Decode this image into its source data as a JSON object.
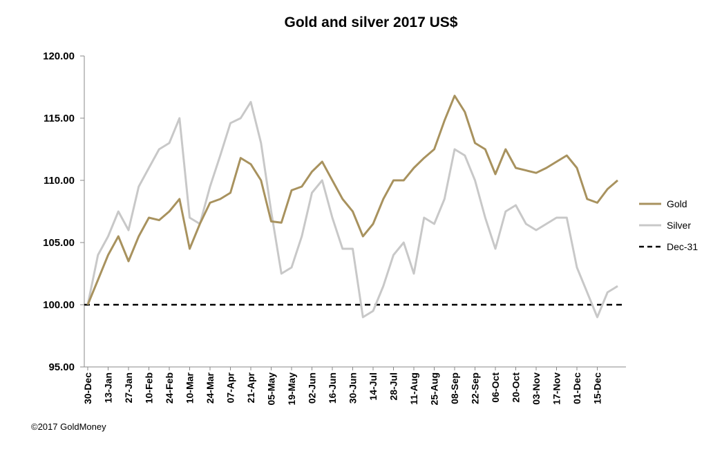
{
  "chart_data": {
    "type": "line",
    "title": "Gold and silver 2017  US$",
    "categories": [
      "30-Dec",
      null,
      "13-Jan",
      null,
      "27-Jan",
      null,
      "10-Feb",
      null,
      "24-Feb",
      null,
      "10-Mar",
      null,
      "24-Mar",
      null,
      "07-Apr",
      null,
      "21-Apr",
      null,
      "05-May",
      null,
      "19-May",
      null,
      "02-Jun",
      null,
      "16-Jun",
      null,
      "30-Jun",
      null,
      "14-Jul",
      null,
      "28-Jul",
      null,
      "11-Aug",
      null,
      "25-Aug",
      null,
      "08-Sep",
      null,
      "22-Sep",
      null,
      "06-Oct",
      null,
      "20-Oct",
      null,
      "03-Nov",
      null,
      "17-Nov",
      null,
      "01-Dec",
      null,
      "15-Dec",
      null,
      null
    ],
    "series": [
      {
        "name": "Gold",
        "color": "#a8925e",
        "values": [
          100,
          102,
          104,
          105.5,
          103.5,
          105.5,
          107,
          106.8,
          107.5,
          108.5,
          104.5,
          106.5,
          108.2,
          108.5,
          109,
          111.8,
          111.3,
          110,
          106.7,
          106.6,
          109.2,
          109.5,
          110.7,
          111.5,
          110,
          108.5,
          107.5,
          105.5,
          106.5,
          108.5,
          110,
          110,
          111,
          111.8,
          112.5,
          114.8,
          116.8,
          115.5,
          113,
          112.5,
          110.5,
          112.5,
          111,
          110.8,
          110.6,
          111,
          111.5,
          112,
          111,
          108.5,
          108.2,
          109.3,
          110
        ]
      },
      {
        "name": "Silver",
        "color": "#c8c8c8",
        "values": [
          100,
          104,
          105.5,
          107.5,
          106,
          109.5,
          111,
          112.5,
          113,
          115,
          107,
          106.5,
          109.5,
          112,
          114.6,
          115,
          116.3,
          113,
          107.5,
          102.5,
          103,
          105.5,
          109,
          110,
          107,
          104.5,
          104.5,
          99,
          99.5,
          101.5,
          104,
          105,
          102.5,
          107,
          106.5,
          108.5,
          112.5,
          112,
          110,
          107,
          104.5,
          107.5,
          108,
          106.5,
          106,
          106.5,
          107,
          107,
          103,
          101,
          99,
          101,
          101.5
        ]
      }
    ],
    "reference_line": {
      "name": "Dec-31",
      "value": 100,
      "color": "#000000"
    },
    "ylim": [
      95,
      120
    ],
    "yticks": [
      {
        "value": 95,
        "label": "95.00"
      },
      {
        "value": 100,
        "label": "100.00"
      },
      {
        "value": 105,
        "label": "105.00"
      },
      {
        "value": 110,
        "label": "110.00"
      },
      {
        "value": 115,
        "label": "115.00"
      },
      {
        "value": 120,
        "label": "120.00"
      }
    ],
    "grid": false,
    "legend": "right",
    "source": "©2017 GoldMoney"
  }
}
